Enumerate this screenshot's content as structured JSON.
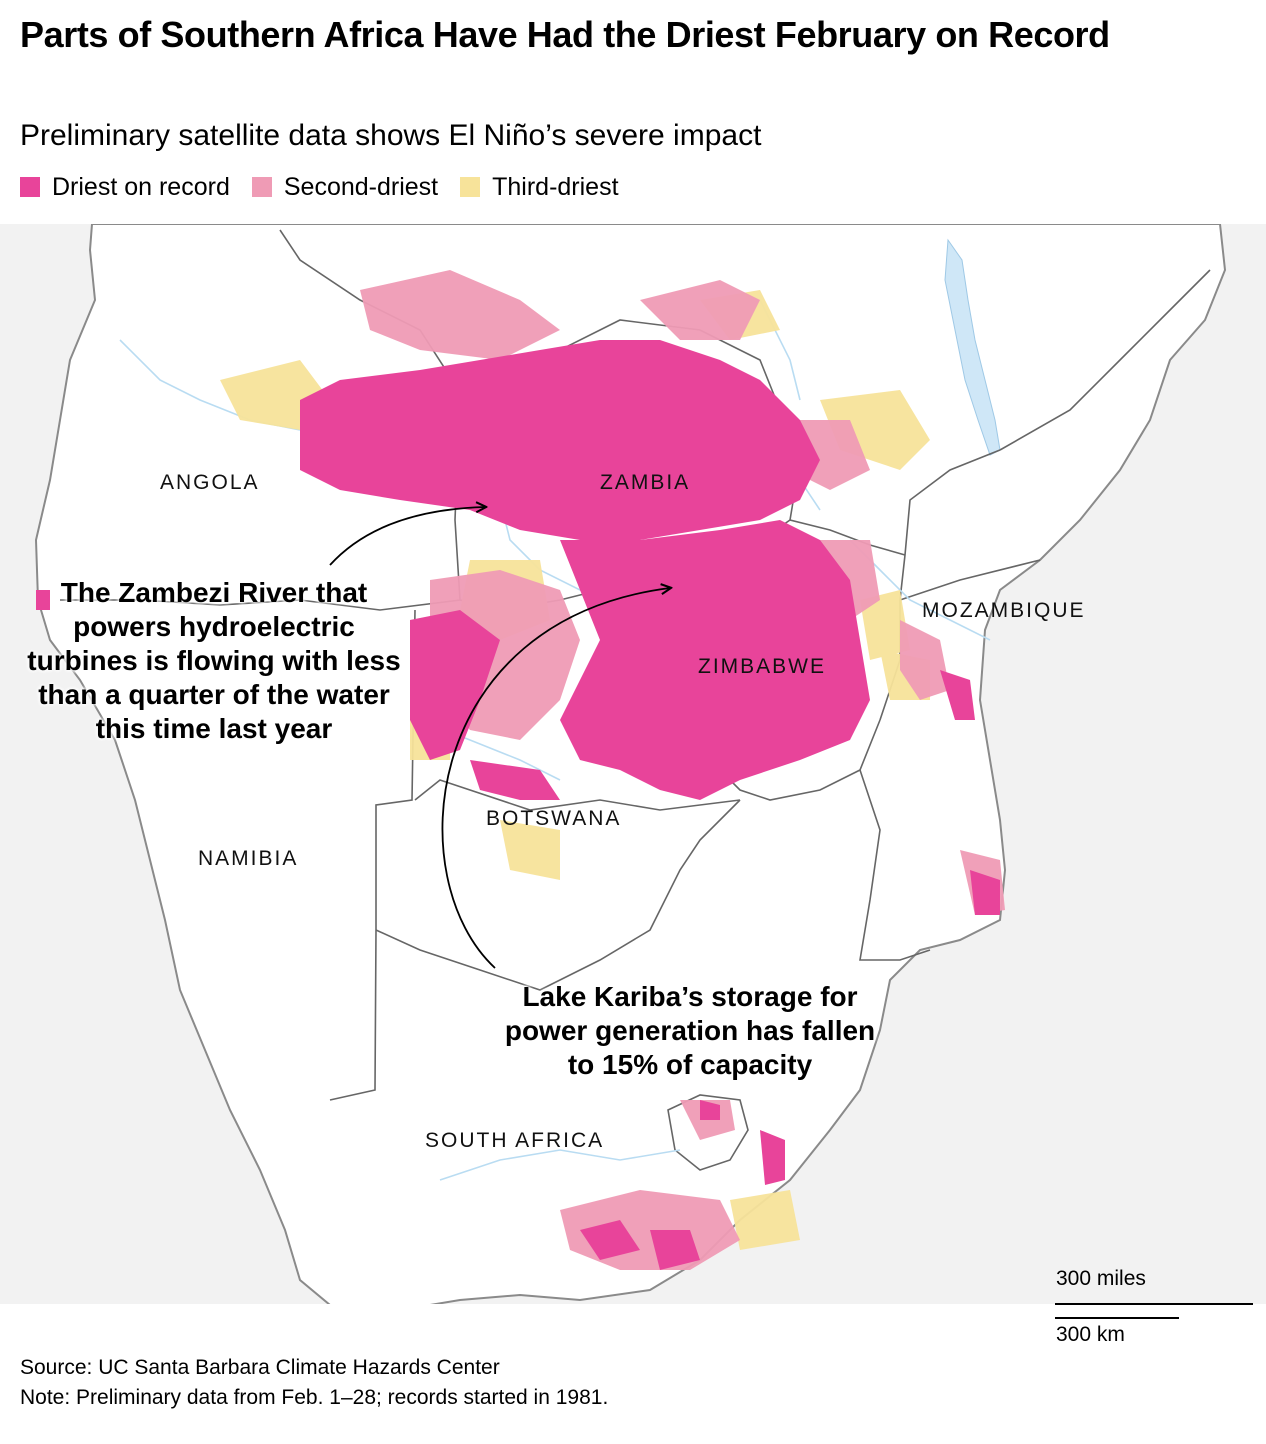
{
  "header": {
    "title": "Parts of Southern Africa Have Had the Driest February on Record",
    "subtitle": "Preliminary satellite data shows El Niño’s severe impact"
  },
  "legend": [
    {
      "label": "Driest on record",
      "color": "#e8449a"
    },
    {
      "label": "Second-driest",
      "color": "#ef9bb5"
    },
    {
      "label": "Third-driest",
      "color": "#f7e39a"
    }
  ],
  "map": {
    "land_color": "#ffffff",
    "background_color": "#f2f2f2",
    "border_color": "#666666",
    "river_color": "#b9dcf2",
    "lake_color": "#cfe7f7",
    "countries": {
      "angola": "ANGOLA",
      "zambia": "ZAMBIA",
      "mozambique": "MOZAMBIQUE",
      "zimbabwe": "ZIMBABWE",
      "botswana": "BOTSWANA",
      "namibia": "NAMIBIA",
      "south_africa": "SOUTH AFRICA"
    }
  },
  "annotations": {
    "zambezi": "The Zambezi River that powers hydroelectric turbines is flowing with less than a quarter of the water this time last year",
    "kariba": "Lake Kariba’s storage for power generation has fallen to 15% of capacity"
  },
  "scale": {
    "miles": "300 miles",
    "km": "300 km"
  },
  "footer": {
    "source": "Source: UC Santa Barbara Climate Hazards Center",
    "note": "Note: Preliminary data from Feb. 1–28; records started in 1981."
  }
}
